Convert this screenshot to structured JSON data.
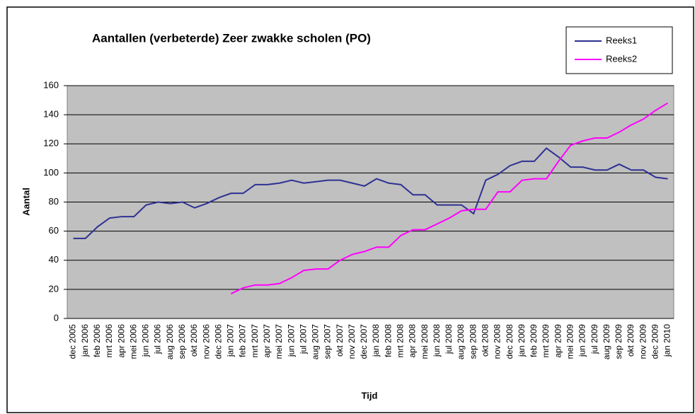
{
  "chart_data": {
    "type": "line",
    "title": "Aantallen (verbeterde) Zeer zwakke scholen (PO)",
    "x_label": "Tijd",
    "y_label": "Aantal",
    "categories": [
      "dec 2005",
      "jan 2006",
      "feb 2006",
      "mrt 2006",
      "apr 2006",
      "mei 2006",
      "jun 2006",
      "jul 2006",
      "aug 2006",
      "sep 2006",
      "okt 2006",
      "nov 2006",
      "dec 2006",
      "jan 2007",
      "feb 2007",
      "mrt 2007",
      "apr 2007",
      "mei 2007",
      "jun 2007",
      "jul 2007",
      "aug 2007",
      "sep 2007",
      "okt 2007",
      "nov 2007",
      "dec 2007",
      "jan 2008",
      "feb 2008",
      "mrt 2008",
      "apr 2008",
      "mei 2008",
      "jun 2008",
      "jul 2008",
      "aug 2008",
      "sep 2008",
      "okt 2008",
      "nov 2008",
      "dec 2008",
      "jan 2009",
      "feb 2009",
      "mrt 2009",
      "apr 2009",
      "mei 2009",
      "jun 2009",
      "jul 2009",
      "aug 2009",
      "sep 2009",
      "okt 2009",
      "nov 2009",
      "dec 2009",
      "jan 2010"
    ],
    "series": [
      {
        "name": "Reeks1",
        "color": "#2e3192",
        "values": [
          55,
          55,
          63,
          69,
          70,
          70,
          78,
          80,
          79,
          80,
          76,
          79,
          83,
          86,
          86,
          92,
          92,
          93,
          95,
          93,
          94,
          95,
          95,
          93,
          91,
          96,
          93,
          92,
          85,
          85,
          78,
          78,
          78,
          72,
          95,
          99,
          105,
          108,
          108,
          117,
          111,
          104,
          104,
          102,
          102,
          106,
          102,
          102,
          97,
          96
        ]
      },
      {
        "name": "Reeks2",
        "color": "#ff00ff",
        "values": [
          null,
          null,
          null,
          null,
          null,
          null,
          null,
          null,
          null,
          null,
          null,
          null,
          null,
          17,
          21,
          23,
          23,
          24,
          28,
          33,
          34,
          34,
          40,
          44,
          46,
          49,
          49,
          57,
          61,
          61,
          65,
          69,
          74,
          75,
          75,
          87,
          87,
          95,
          96,
          96,
          108,
          119,
          122,
          124,
          124,
          128,
          133,
          137,
          143,
          148
        ]
      }
    ],
    "ylim": [
      0,
      160
    ],
    "yticks": [
      0,
      20,
      40,
      60,
      80,
      100,
      120,
      140,
      160
    ],
    "grid": true,
    "legend": "top-right"
  }
}
